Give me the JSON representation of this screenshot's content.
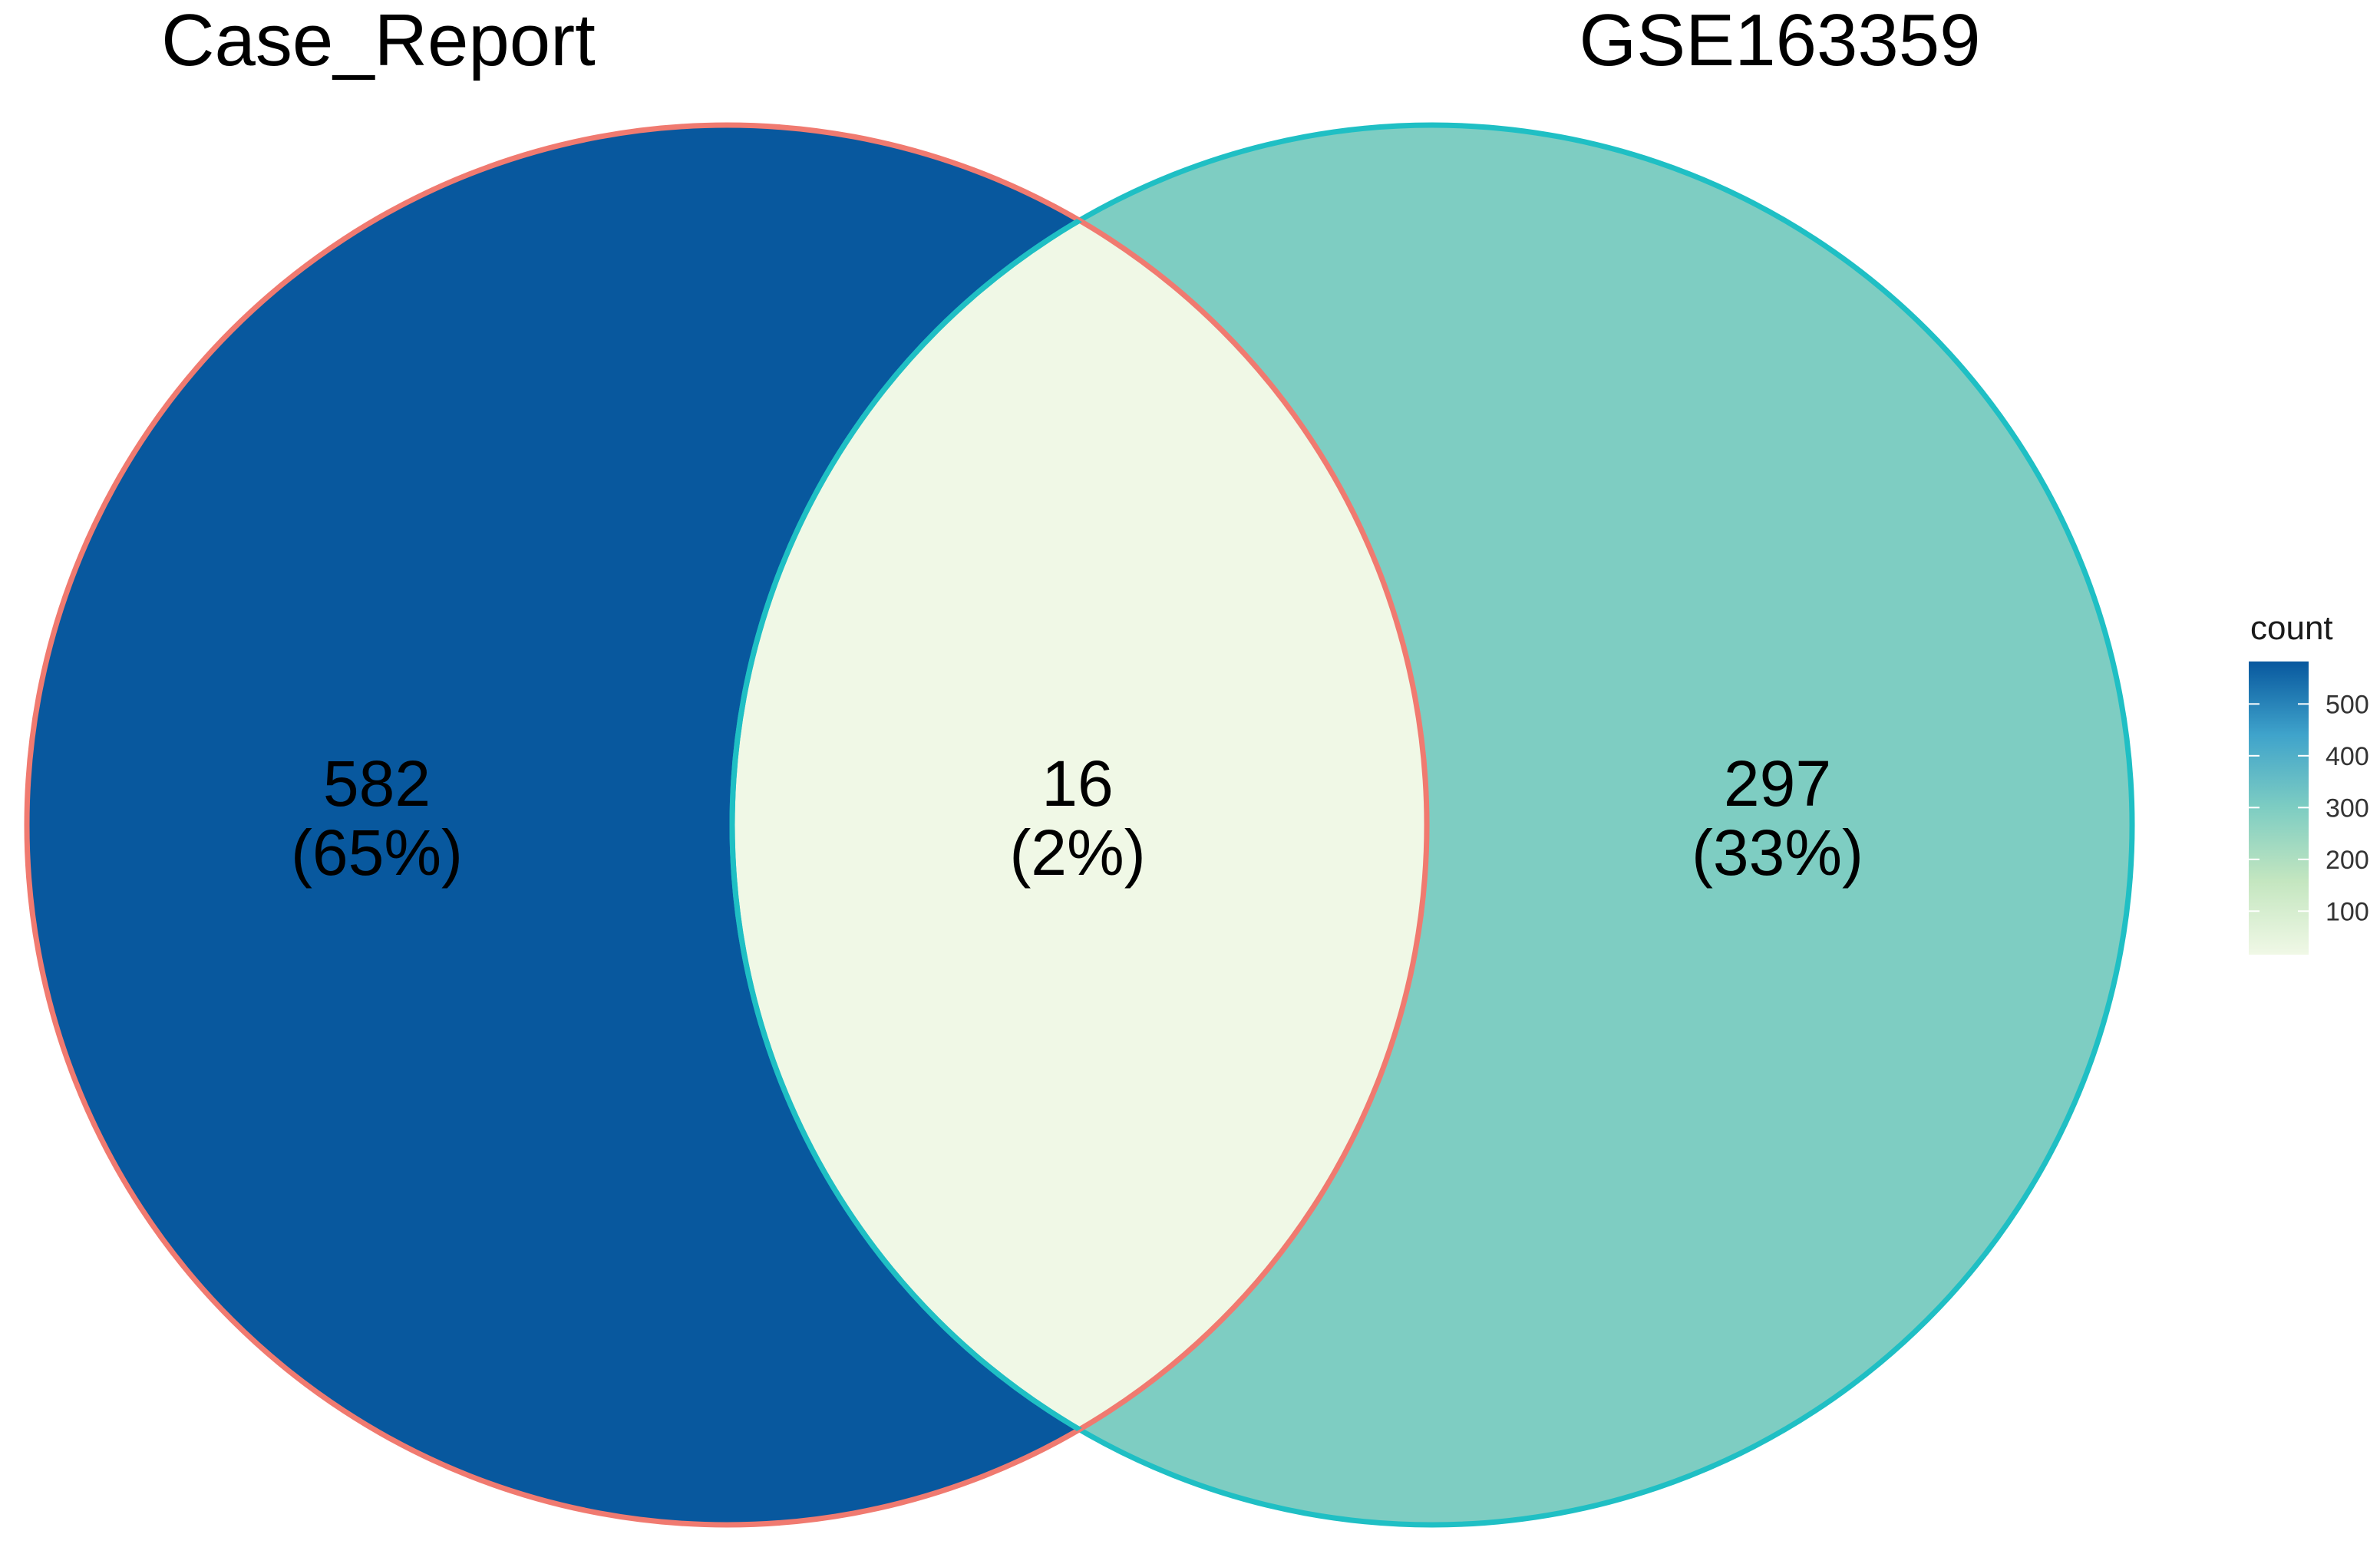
{
  "chart_data": {
    "type": "venn",
    "sets": [
      {
        "name": "Case_Report",
        "border_color": "#f07a70"
      },
      {
        "name": "GSE163359",
        "border_color": "#1fbfc4"
      }
    ],
    "regions": [
      {
        "id": "case_report_only",
        "count": "582",
        "percent": "(65%)",
        "fill": "#08589e"
      },
      {
        "id": "intersection",
        "count": "16",
        "percent": "(2%)",
        "fill": "#f0f8e6"
      },
      {
        "id": "gse163359_only",
        "count": "297",
        "percent": "(33%)",
        "fill": "#7ecdc2"
      }
    ],
    "legend": {
      "title": "count",
      "placement": "right",
      "range": [
        16,
        582
      ],
      "ticks": [
        {
          "value": 500,
          "label": "500"
        },
        {
          "value": 400,
          "label": "400"
        },
        {
          "value": 300,
          "label": "300"
        },
        {
          "value": 200,
          "label": "200"
        },
        {
          "value": 100,
          "label": "100"
        }
      ],
      "gradient": [
        "#f0f8e6",
        "#c4e6c0",
        "#7ecdc2",
        "#3fa3cb",
        "#08589e"
      ]
    }
  }
}
